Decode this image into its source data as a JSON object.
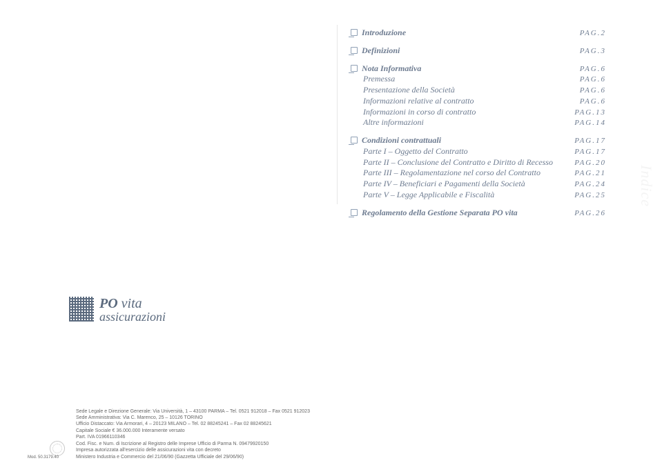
{
  "toc": [
    {
      "type": "section",
      "rows": [
        {
          "label": "Introduzione",
          "page": "PAG.2",
          "main": true,
          "bullet": true
        }
      ]
    },
    {
      "type": "section",
      "rows": [
        {
          "label": "Definizioni",
          "page": "PAG.3",
          "main": true,
          "bullet": true
        }
      ]
    },
    {
      "type": "section",
      "rows": [
        {
          "label": "Nota Informativa",
          "page": "PAG.6",
          "main": true,
          "bullet": true
        },
        {
          "label": "Premessa",
          "page": "PAG.6",
          "main": false
        },
        {
          "label": "Presentazione della Società",
          "page": "PAG.6",
          "main": false
        },
        {
          "label": "Informazioni relative al contratto",
          "page": "PAG.6",
          "main": false
        },
        {
          "label": "Informazioni in corso di contratto",
          "page": "PAG.13",
          "main": false
        },
        {
          "label": "Altre informazioni",
          "page": "PAG.14",
          "main": false
        }
      ]
    },
    {
      "type": "section",
      "rows": [
        {
          "label": "Condizioni contrattuali",
          "page": "PAG.17",
          "main": true,
          "bullet": true
        },
        {
          "label": "Parte I  – Oggetto del Contratto",
          "page": "PAG.17",
          "main": false
        },
        {
          "label": "Parte II  – Conclusione del Contratto e Diritto di Recesso",
          "page": "PAG.20",
          "main": false
        },
        {
          "label": "Parte III – Regolamentazione nel corso del Contratto",
          "page": "PAG.21",
          "main": false
        },
        {
          "label": "Parte IV – Beneficiari e Pagamenti della Società",
          "page": "PAG.24",
          "main": false
        },
        {
          "label": "Parte V  – Legge Applicabile e Fiscalità",
          "page": "PAG.25",
          "main": false
        }
      ]
    },
    {
      "type": "section",
      "rows": [
        {
          "label": "Regolamento della Gestione Separata PO vita",
          "page": "PAG.26",
          "main": true,
          "bullet": true
        }
      ]
    }
  ],
  "side_word": "Indice",
  "logo": {
    "line1a": "PO ",
    "line1b": "vita",
    "line2": "assicurazioni"
  },
  "legal": {
    "l1": "Sede Legale e Direzione Generale: Via Università, 1 – 43100 PARMA – Tel. 0521 912018 – Fax 0521 912023",
    "l2": "Sede Amministrativa: Via C. Marenco, 25 – 10126 TORINO",
    "l3": "Ufficio Distaccato: Via Armorari, 4 – 20123 MILANO – Tel. 02 88245241 – Fax 02 88245621",
    "l4": "Capitale Sociale € 36.000.000 Interamente versato",
    "l5": "Part. IVA 01966110346",
    "l6": "Cod. Fisc. e Num. di Iscrizione al Registro delle Imprese Ufficio di Parma N. 09479920150",
    "l7": "Impresa autorizzata all'esercizio delle assicurazioni vita con decreto",
    "l8": "Ministero Industria e Commercio del 21/06/90 (Gazzetta Ufficiale del 29/06/90)",
    "mod": "Mod. 50.3179.40"
  },
  "colors": {
    "text_muted": "#6e7c91",
    "logo": "#5b6a7e",
    "background": "#ffffff"
  }
}
